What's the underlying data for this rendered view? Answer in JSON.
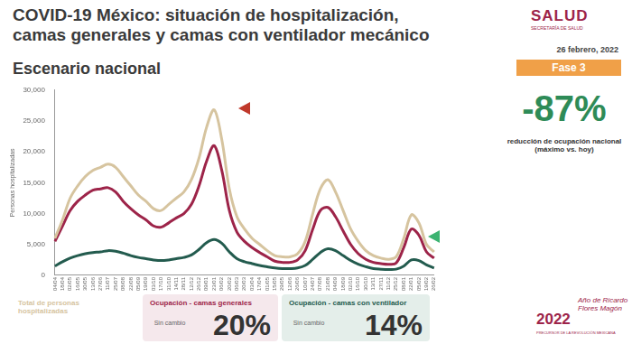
{
  "header": {
    "title": "COVID-19 México: situación de hospitalización, camas generales y camas con ventilador mecánico",
    "subtitle": "Escenario nacional",
    "logo": "SALUD",
    "logo_sub": "SECRETARÍA DE SALUD",
    "date": "26 febrero, 2022",
    "phase": "Fase 3",
    "headline": "-87%",
    "headline_caption": "reducción de ocupación nacional (máximo vs. hoy)"
  },
  "summary_boxes": [
    {
      "label": "Total de personas hospitalizadas"
    },
    {
      "label": "Ocupación - camas generales",
      "note": "Sin cambio",
      "value": "20%"
    },
    {
      "label": "Ocupación - camas con ventilador",
      "note": "Sin cambio",
      "value": "14%"
    }
  ],
  "footer": {
    "year": "2022",
    "name": "Año de Ricardo Flores Magón",
    "caption": "PRECURSOR DE LA REVOLUCIÓN MEXICANA"
  },
  "chart_data": {
    "type": "line",
    "y_label": "Personas hospitalizadas",
    "categories": [
      "04/04",
      "18/04",
      "02/05",
      "16/05",
      "30/05",
      "13/06",
      "27/06",
      "11/07",
      "25/07",
      "08/08",
      "22/08",
      "05/09",
      "19/09",
      "03/10",
      "17/10",
      "31/10",
      "14/11",
      "28/11",
      "12/12",
      "26/12",
      "09/01",
      "23/01",
      "06/02",
      "20/02",
      "06/03",
      "20/03",
      "03/04",
      "17/04",
      "01/05",
      "15/05",
      "29/05",
      "12/06",
      "26/06",
      "10/07",
      "24/07",
      "07/08",
      "21/08",
      "04/09",
      "18/09",
      "02/10",
      "16/10",
      "30/10",
      "13/11",
      "27/11",
      "11/12",
      "25/12",
      "08/01",
      "22/01",
      "05/02",
      "19/02",
      "26/02"
    ],
    "series": [
      {
        "name": "Total de personas hospitalizadas",
        "color": "#d6c49f",
        "values": [
          6000,
          9000,
          12500,
          14500,
          16000,
          17000,
          17500,
          18000,
          17500,
          16000,
          14500,
          13000,
          12000,
          10800,
          10500,
          11500,
          12500,
          13500,
          15500,
          19000,
          24000,
          26800,
          22000,
          14000,
          9500,
          7500,
          6000,
          5000,
          4000,
          3200,
          3000,
          3000,
          3500,
          5500,
          10000,
          14000,
          15500,
          13500,
          10500,
          7500,
          5500,
          4000,
          3200,
          2800,
          2600,
          3000,
          6000,
          9800,
          8500,
          5000,
          3800
        ]
      },
      {
        "name": "Ocupación - camas generales",
        "color": "#9d2449",
        "values": [
          5500,
          8000,
          10500,
          12000,
          13000,
          13800,
          14000,
          14200,
          13500,
          12000,
          10800,
          9800,
          9000,
          8000,
          7800,
          8500,
          9300,
          10000,
          11500,
          14500,
          18500,
          21000,
          17000,
          10500,
          7000,
          5500,
          4500,
          3700,
          3000,
          2300,
          2100,
          2100,
          2500,
          4000,
          7500,
          10500,
          11000,
          9500,
          7200,
          5000,
          3500,
          2600,
          2100,
          1900,
          1800,
          2000,
          4500,
          7500,
          6500,
          3800,
          2800
        ]
      },
      {
        "name": "Ocupación - camas con ventilador",
        "color": "#235b4e",
        "values": [
          1500,
          2200,
          2800,
          3200,
          3500,
          3700,
          3800,
          4000,
          3900,
          3600,
          3200,
          2900,
          2700,
          2500,
          2400,
          2500,
          2700,
          2900,
          3300,
          4200,
          5300,
          5800,
          5200,
          3800,
          2700,
          2200,
          1900,
          1600,
          1400,
          1200,
          1100,
          1100,
          1200,
          1600,
          2600,
          3700,
          4300,
          4000,
          3200,
          2400,
          1800,
          1400,
          1100,
          1000,
          950,
          1000,
          1500,
          2500,
          2400,
          1700,
          1200
        ]
      }
    ],
    "ylim": [
      0,
      30000
    ],
    "yticks": [
      0,
      {
        "value": 5000,
        "label": "5,000"
      },
      {
        "value": 10000,
        "label": "10,000"
      },
      {
        "value": 15000,
        "label": "15,000"
      },
      {
        "value": 20000,
        "label": "20,000"
      },
      {
        "value": 25000,
        "label": "25,000"
      },
      {
        "value": 30000,
        "label": "30,000"
      }
    ],
    "grid": false
  }
}
